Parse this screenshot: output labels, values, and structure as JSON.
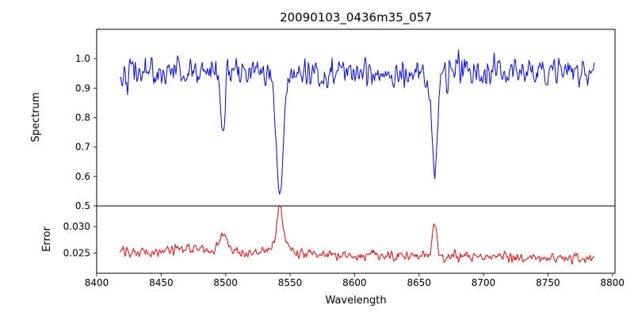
{
  "figure": {
    "title": "20090103_0436m35_057",
    "xlabel": "Wavelength",
    "spectrum_ylabel": "Spectrum",
    "error_ylabel": "Error"
  },
  "chart_data": {
    "type": "line",
    "title": "20090103_0436m35_057",
    "xlabel": "Wavelength",
    "grid": false,
    "legend": "none",
    "xlim": [
      8400,
      8802
    ],
    "x_start": 8418,
    "x_end": 8786,
    "n_points": 560,
    "seed": 42,
    "xticks": [
      {
        "v": 8400,
        "label": "8400"
      },
      {
        "v": 8450,
        "label": "8450"
      },
      {
        "v": 8500,
        "label": "8500"
      },
      {
        "v": 8550,
        "label": "8550"
      },
      {
        "v": 8600,
        "label": "8600"
      },
      {
        "v": 8650,
        "label": "8650"
      },
      {
        "v": 8700,
        "label": "8700"
      },
      {
        "v": 8750,
        "label": "8750"
      },
      {
        "v": 8800,
        "label": "8800"
      }
    ],
    "panels": [
      {
        "name": "spectrum",
        "ylabel": "Spectrum",
        "color": "#0000ff",
        "ylim": [
          0.5,
          1.1
        ],
        "yticks": [
          {
            "v": 0.5,
            "label": "0.5"
          },
          {
            "v": 0.6,
            "label": "0.6"
          },
          {
            "v": 0.7,
            "label": "0.7"
          },
          {
            "v": 0.8,
            "label": "0.8"
          },
          {
            "v": 0.9,
            "label": "0.9"
          },
          {
            "v": 1.0,
            "label": "1.0"
          }
        ],
        "continuum": 0.955,
        "noise_sigma": 0.028,
        "absorption_lines": [
          {
            "center": 8498.0,
            "depth": 0.21,
            "sigma": 1.5
          },
          {
            "center": 8542.1,
            "depth": 0.38,
            "sigma": 2.4
          },
          {
            "center": 8542.1,
            "depth": 0.045,
            "sigma": 8.0
          },
          {
            "center": 8662.1,
            "depth": 0.32,
            "sigma": 1.9
          },
          {
            "center": 8662.1,
            "depth": 0.035,
            "sigma": 6.0
          }
        ]
      },
      {
        "name": "error",
        "ylabel": "Error",
        "color": "#ff0000",
        "ylim": [
          0.0212,
          0.0339
        ],
        "yticks": [
          {
            "v": 0.025,
            "label": "0.025"
          },
          {
            "v": 0.03,
            "label": "0.030"
          }
        ],
        "baseline": 0.0252,
        "slope_per_angstrom": -3.3e-06,
        "noise_sigma": 0.00055,
        "peaks": [
          {
            "center": 8465.0,
            "height": 0.0008,
            "sigma": 12.0
          },
          {
            "center": 8498.0,
            "height": 0.0025,
            "sigma": 2.3
          },
          {
            "center": 8498.0,
            "height": 0.0012,
            "sigma": 6.0
          },
          {
            "center": 8542.1,
            "height": 0.0066,
            "sigma": 2.0
          },
          {
            "center": 8542.1,
            "height": 0.0022,
            "sigma": 7.0
          },
          {
            "center": 8662.1,
            "height": 0.0058,
            "sigma": 1.9
          }
        ]
      }
    ]
  }
}
